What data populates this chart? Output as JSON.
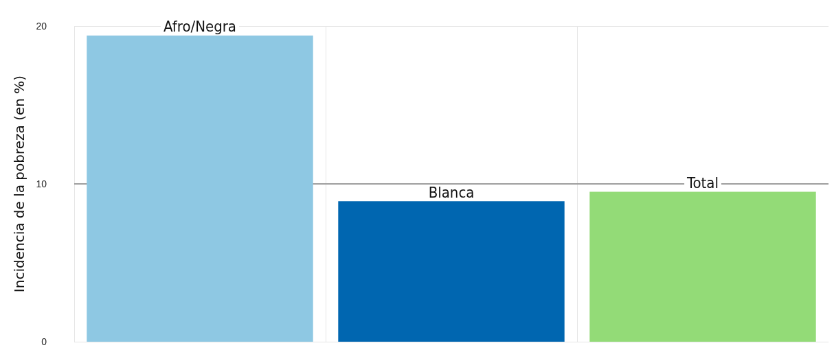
{
  "chart_data": {
    "type": "bar",
    "ylabel": "Incidencia de la pobreza (en %)",
    "categories": [
      "Afro/Negra",
      "Blanca",
      "Total"
    ],
    "values": [
      19.4,
      8.9,
      9.5
    ],
    "colors": [
      "#8ec8e3",
      "#0066b0",
      "#93db77"
    ],
    "ylim": [
      0,
      20
    ],
    "yticks": [
      0,
      10,
      20
    ],
    "grid": true,
    "tick_labels": "y",
    "ref_lines": [
      {
        "axis": "y",
        "value": 10,
        "color": "#9e9e9e"
      }
    ]
  }
}
